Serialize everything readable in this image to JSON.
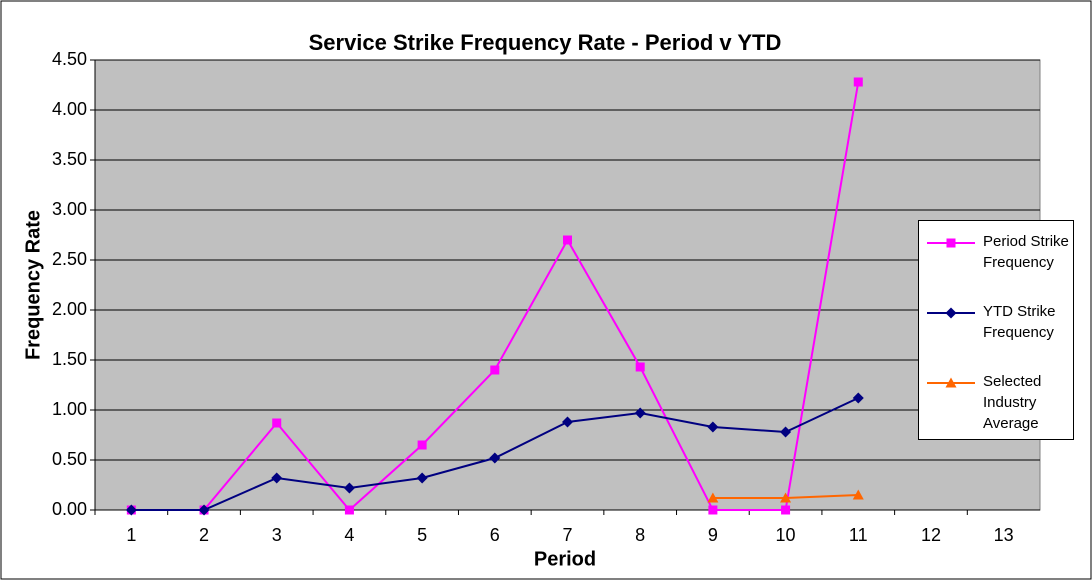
{
  "chart_data": {
    "type": "line",
    "title": "Service Strike Frequency Rate - Period v YTD",
    "x_label": "Period",
    "y_label": "Frequency Rate",
    "categories": [
      "1",
      "2",
      "3",
      "4",
      "5",
      "6",
      "7",
      "8",
      "9",
      "10",
      "11",
      "12",
      "13"
    ],
    "series": [
      {
        "name": "Period Strike Frequency",
        "color": "#ff00ff",
        "marker": "square",
        "values": [
          0,
          0,
          0.87,
          0,
          0.65,
          1.4,
          2.7,
          1.43,
          0,
          0,
          4.28,
          null,
          null
        ]
      },
      {
        "name": "YTD Strike Frequency",
        "color": "#000080",
        "marker": "diamond",
        "values": [
          0,
          0,
          0.32,
          0.22,
          0.32,
          0.52,
          0.88,
          0.97,
          0.83,
          0.78,
          1.12,
          null,
          null
        ]
      },
      {
        "name": "Selected Industry Average",
        "color": "#ff6600",
        "marker": "triangle",
        "values": [
          null,
          null,
          null,
          null,
          null,
          null,
          null,
          null,
          0.12,
          0.12,
          0.15,
          null,
          null
        ]
      }
    ],
    "ylim": [
      0,
      4.5
    ],
    "yticks": [
      {
        "value": 0,
        "label": "0.00"
      },
      {
        "value": 0.5,
        "label": "0.50"
      },
      {
        "value": 1,
        "label": "1.00"
      },
      {
        "value": 1.5,
        "label": "1.50"
      },
      {
        "value": 2,
        "label": "2.00"
      },
      {
        "value": 2.5,
        "label": "2.50"
      },
      {
        "value": 3,
        "label": "3.00"
      },
      {
        "value": 3.5,
        "label": "3.50"
      },
      {
        "value": 4,
        "label": "4.00"
      },
      {
        "value": 4.5,
        "label": "4.50"
      }
    ],
    "grid": true,
    "legend": "right"
  }
}
